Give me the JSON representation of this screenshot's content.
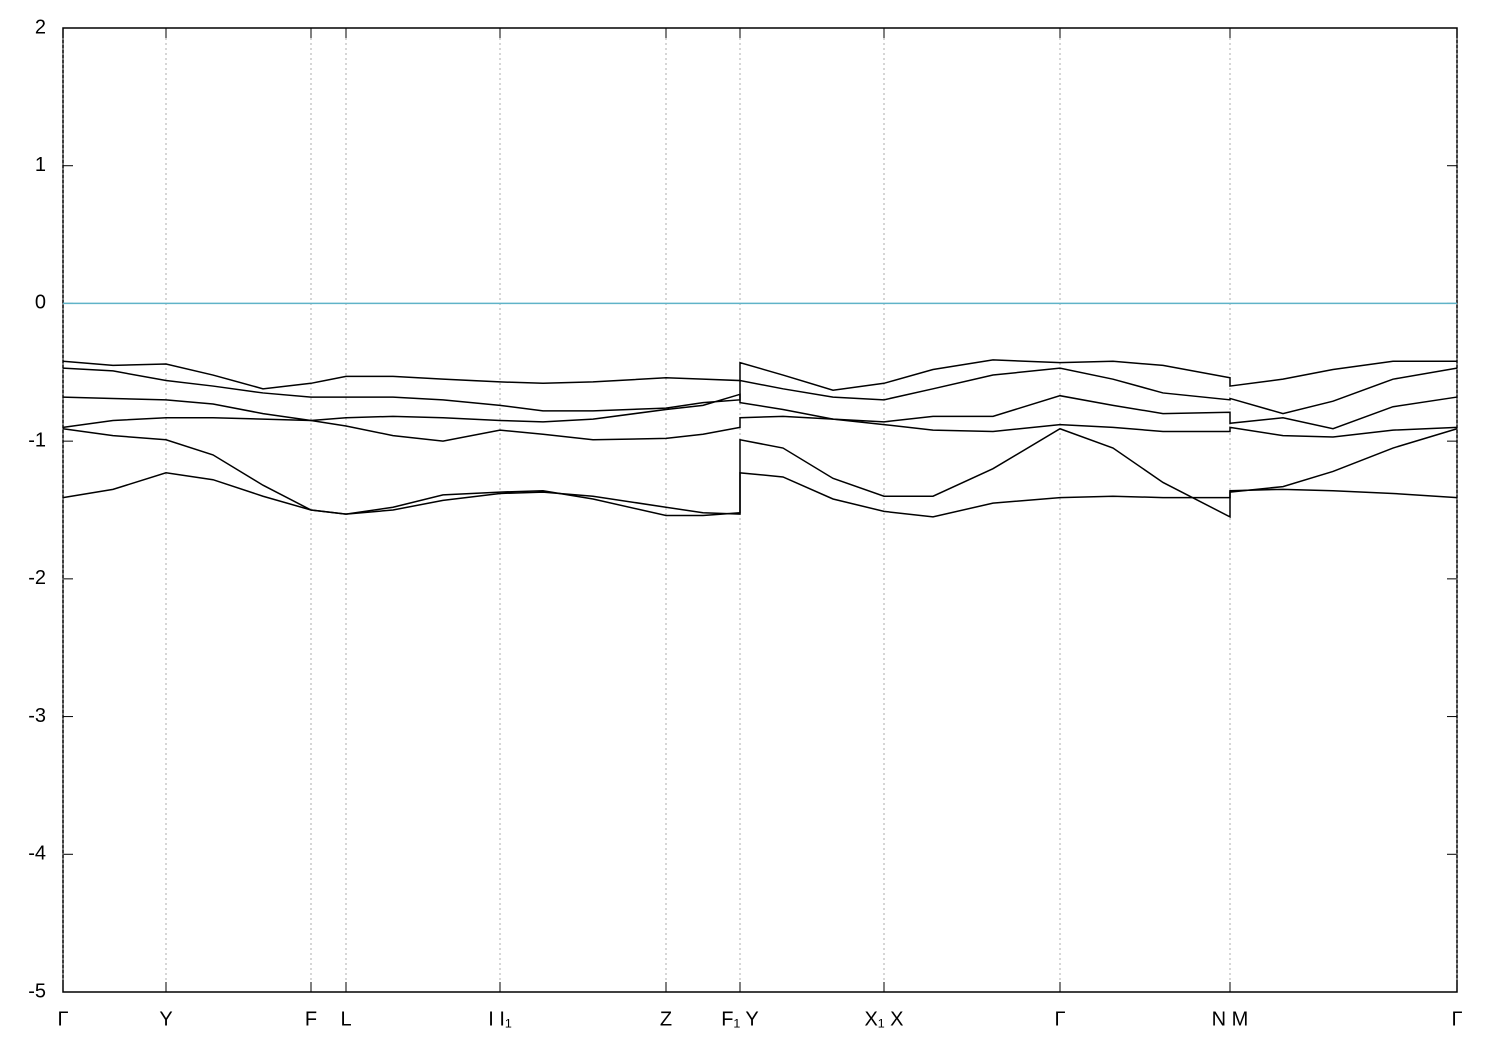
{
  "chart_data": {
    "type": "line",
    "x": [
      0,
      0.5,
      1.03,
      1.5,
      2.0,
      2.48,
      2.83,
      3.3,
      3.8,
      4.37,
      4.8,
      5.3,
      6.03,
      6.4,
      6.77,
      6.77,
      7.2,
      7.7,
      8.21,
      8.7,
      9.3,
      9.97,
      10.5,
      11.0,
      11.67,
      11.67,
      12.2,
      12.7,
      13.3,
      13.94
    ],
    "series": [
      {
        "color": "#000000",
        "values": [
          -1.41,
          -1.35,
          -1.23,
          -1.28,
          -1.4,
          -1.5,
          -1.53,
          -1.5,
          -1.43,
          -1.38,
          -1.37,
          -1.4,
          -1.48,
          -1.52,
          -1.53,
          -1.23,
          -1.26,
          -1.42,
          -1.51,
          -1.55,
          -1.45,
          -1.41,
          -1.4,
          -1.41,
          -1.41,
          -1.36,
          -1.35,
          -1.36,
          -1.38,
          -1.41
        ]
      },
      {
        "color": "#000000",
        "values": [
          -0.91,
          -0.96,
          -0.99,
          -1.1,
          -1.32,
          -1.5,
          -1.53,
          -1.48,
          -1.39,
          -1.37,
          -1.36,
          -1.42,
          -1.54,
          -1.54,
          -1.52,
          -0.99,
          -1.05,
          -1.27,
          -1.4,
          -1.4,
          -1.2,
          -0.91,
          -1.05,
          -1.3,
          -1.55,
          -1.37,
          -1.33,
          -1.22,
          -1.05,
          -0.91
        ]
      },
      {
        "color": "#000000",
        "values": [
          -0.9,
          -0.85,
          -0.83,
          -0.83,
          -0.84,
          -0.85,
          -0.89,
          -0.96,
          -1.0,
          -0.92,
          -0.95,
          -0.99,
          -0.98,
          -0.95,
          -0.9,
          -0.83,
          -0.82,
          -0.84,
          -0.88,
          -0.92,
          -0.93,
          -0.88,
          -0.9,
          -0.93,
          -0.93,
          -0.9,
          -0.96,
          -0.97,
          -0.92,
          -0.9
        ]
      },
      {
        "color": "#000000",
        "values": [
          -0.68,
          -0.69,
          -0.7,
          -0.73,
          -0.8,
          -0.85,
          -0.83,
          -0.82,
          -0.83,
          -0.85,
          -0.86,
          -0.84,
          -0.77,
          -0.74,
          -0.66,
          -0.72,
          -0.77,
          -0.84,
          -0.86,
          -0.82,
          -0.82,
          -0.67,
          -0.74,
          -0.8,
          -0.79,
          -0.87,
          -0.83,
          -0.91,
          -0.75,
          -0.68
        ]
      },
      {
        "color": "#000000",
        "values": [
          -0.47,
          -0.49,
          -0.56,
          -0.6,
          -0.65,
          -0.68,
          -0.68,
          -0.68,
          -0.7,
          -0.74,
          -0.78,
          -0.78,
          -0.76,
          -0.72,
          -0.7,
          -0.56,
          -0.62,
          -0.68,
          -0.7,
          -0.62,
          -0.52,
          -0.47,
          -0.55,
          -0.65,
          -0.7,
          -0.69,
          -0.8,
          -0.71,
          -0.55,
          -0.47
        ]
      },
      {
        "color": "#000000",
        "values": [
          -0.42,
          -0.45,
          -0.44,
          -0.52,
          -0.62,
          -0.58,
          -0.53,
          -0.53,
          -0.55,
          -0.57,
          -0.58,
          -0.57,
          -0.54,
          -0.55,
          -0.56,
          -0.43,
          -0.52,
          -0.63,
          -0.58,
          -0.48,
          -0.41,
          -0.43,
          -0.42,
          -0.45,
          -0.54,
          -0.6,
          -0.55,
          -0.48,
          -0.42,
          -0.42
        ]
      }
    ],
    "xlim": [
      0,
      13.94
    ],
    "xticks": [
      {
        "value": 0,
        "label": "Γ"
      },
      {
        "value": 1.03,
        "label": "Y"
      },
      {
        "value": 2.48,
        "label": "F"
      },
      {
        "value": 2.83,
        "label": "L"
      },
      {
        "value": 4.37,
        "label": "I I₁"
      },
      {
        "value": 6.03,
        "label": "Z"
      },
      {
        "value": 6.77,
        "label": "F₁ Y"
      },
      {
        "value": 8.21,
        "label": "X₁ X"
      },
      {
        "value": 9.97,
        "label": "Γ"
      },
      {
        "value": 11.67,
        "label": "N M"
      },
      {
        "value": 13.94,
        "label": "Γ"
      }
    ],
    "ylim": [
      -5,
      2
    ],
    "yticks": [
      -5,
      -4,
      -3,
      -2,
      -1,
      0,
      1,
      2
    ],
    "grid": "x",
    "hline": 0,
    "hline_color": "#5fb3c8"
  }
}
